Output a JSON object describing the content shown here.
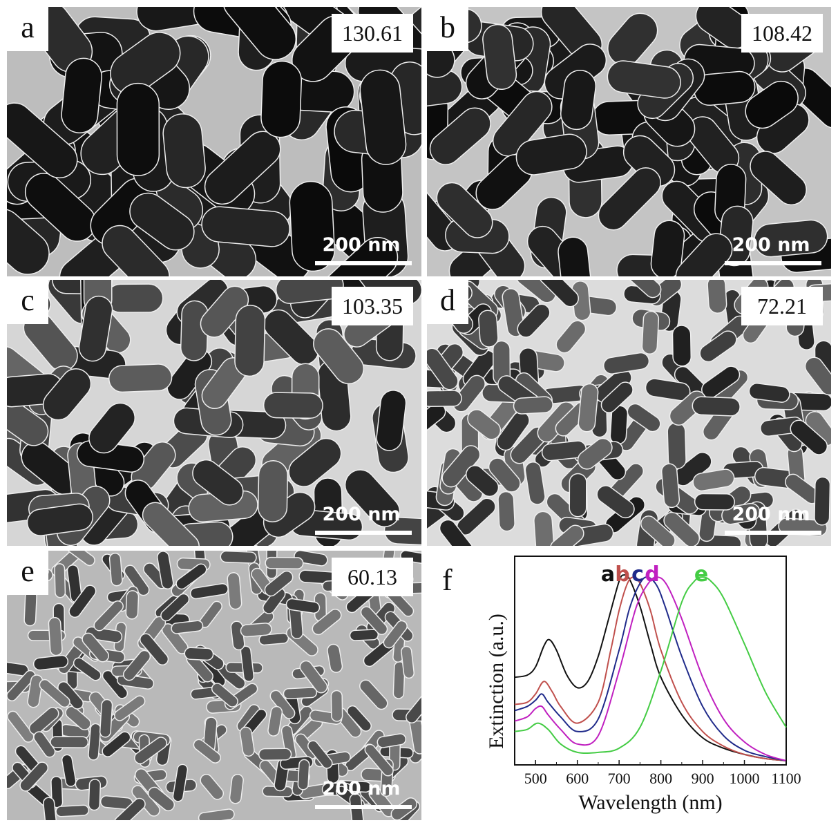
{
  "panels": [
    {
      "letter": "a",
      "value": "130.61",
      "scale": "200 nm"
    },
    {
      "letter": "b",
      "value": "108.42",
      "scale": "200 nm"
    },
    {
      "letter": "c",
      "value": "103.35",
      "scale": "200 nm"
    },
    {
      "letter": "d",
      "value": "72.21",
      "scale": "200 nm"
    },
    {
      "letter": "e",
      "value": "60.13",
      "scale": "200 nm"
    }
  ],
  "chart_letter": "f",
  "chart_data": {
    "type": "line",
    "xlabel": "Wavelength (nm)",
    "ylabel": "Extinction (a.u.)",
    "xlim": [
      450,
      1100
    ],
    "ylim": [
      0,
      1
    ],
    "xticks": [
      500,
      600,
      700,
      800,
      900,
      1000,
      1100
    ],
    "series": [
      {
        "name": "a",
        "color": "#111111",
        "x": [
          450,
          480,
          500,
          520,
          533,
          550,
          575,
          600,
          625,
          650,
          675,
          700,
          712,
          725,
          750,
          775,
          800,
          850,
          900,
          950,
          1000,
          1050,
          1100
        ],
        "y": [
          0.42,
          0.43,
          0.47,
          0.57,
          0.6,
          0.55,
          0.43,
          0.37,
          0.4,
          0.52,
          0.7,
          0.88,
          0.91,
          0.89,
          0.76,
          0.58,
          0.42,
          0.24,
          0.13,
          0.08,
          0.05,
          0.03,
          0.02
        ]
      },
      {
        "name": "b",
        "color": "#c0504d",
        "x": [
          450,
          480,
          500,
          520,
          540,
          560,
          600,
          650,
          680,
          700,
          720,
          735,
          750,
          775,
          800,
          850,
          900,
          950,
          1000,
          1050,
          1100
        ],
        "y": [
          0.29,
          0.3,
          0.34,
          0.4,
          0.35,
          0.28,
          0.2,
          0.3,
          0.55,
          0.74,
          0.87,
          0.9,
          0.87,
          0.74,
          0.55,
          0.3,
          0.16,
          0.09,
          0.05,
          0.03,
          0.02
        ]
      },
      {
        "name": "c",
        "color": "#1f2a8a",
        "x": [
          450,
          480,
          500,
          515,
          530,
          560,
          600,
          650,
          700,
          725,
          750,
          768,
          790,
          810,
          850,
          900,
          950,
          1000,
          1050,
          1100
        ],
        "y": [
          0.26,
          0.28,
          0.31,
          0.34,
          0.3,
          0.23,
          0.16,
          0.22,
          0.55,
          0.75,
          0.87,
          0.9,
          0.86,
          0.76,
          0.52,
          0.28,
          0.14,
          0.07,
          0.04,
          0.02
        ]
      },
      {
        "name": "d",
        "color": "#c020c0",
        "x": [
          450,
          480,
          500,
          515,
          530,
          560,
          600,
          650,
          700,
          740,
          770,
          792,
          815,
          850,
          900,
          950,
          1000,
          1050,
          1100
        ],
        "y": [
          0.21,
          0.23,
          0.27,
          0.28,
          0.24,
          0.17,
          0.1,
          0.14,
          0.45,
          0.75,
          0.87,
          0.9,
          0.86,
          0.7,
          0.42,
          0.22,
          0.11,
          0.05,
          0.02
        ]
      },
      {
        "name": "e",
        "color": "#44cc44",
        "x": [
          450,
          480,
          505,
          530,
          560,
          600,
          650,
          700,
          750,
          800,
          850,
          880,
          900,
          920,
          950,
          1000,
          1050,
          1100
        ],
        "y": [
          0.16,
          0.17,
          0.2,
          0.17,
          0.1,
          0.06,
          0.06,
          0.08,
          0.18,
          0.45,
          0.78,
          0.88,
          0.9,
          0.88,
          0.8,
          0.58,
          0.35,
          0.18
        ]
      }
    ]
  }
}
